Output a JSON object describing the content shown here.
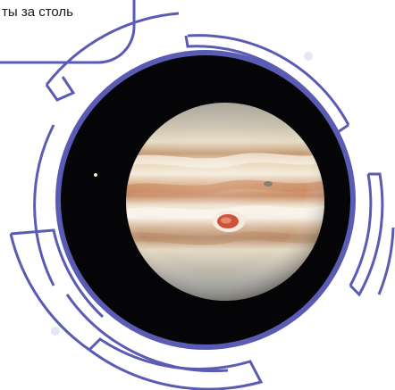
{
  "caption": {
    "text": "ты за столь"
  },
  "colors": {
    "frame": "#5a5cb4",
    "space": "#050507",
    "background": "#ffffff",
    "dot": "#e6e7f2"
  },
  "planet": {
    "name_hidden": "",
    "icon": "jupiter-planet-image"
  }
}
